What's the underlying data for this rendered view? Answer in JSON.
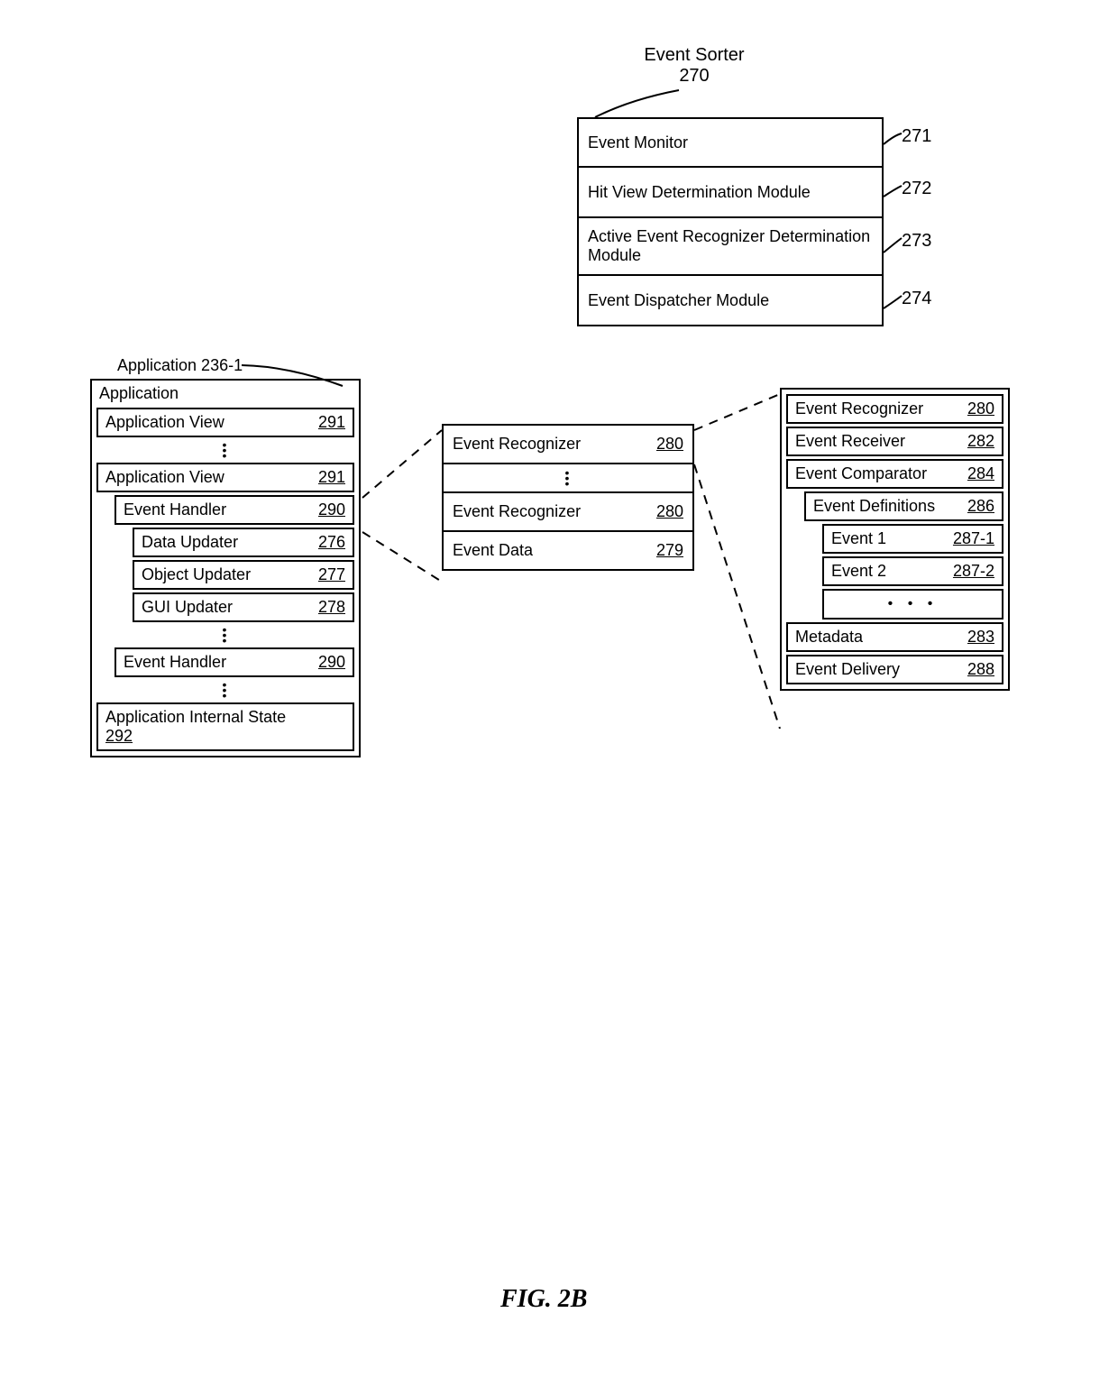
{
  "colors": {
    "stroke": "#000000",
    "background": "#ffffff",
    "text": "#000000"
  },
  "typography": {
    "font_family": "Arial, Helvetica, sans-serif",
    "label_fontsize": 18,
    "callout_fontsize": 20,
    "caption_fontsize": 28
  },
  "figure_caption": "FIG. 2B",
  "event_sorter": {
    "title": "Event Sorter",
    "title_ref": "270",
    "rows": [
      {
        "label": "Event Monitor",
        "callout": "271"
      },
      {
        "label": "Hit View Determination Module",
        "callout": "272"
      },
      {
        "label": "Active Event Recognizer Determination Module",
        "callout": "273"
      },
      {
        "label": "Event Dispatcher Module",
        "callout": "274"
      }
    ]
  },
  "application": {
    "outer_label": "Application 236-1",
    "header": "Application",
    "rows": [
      {
        "kind": "item",
        "label": "Application View",
        "ref": "291",
        "indent": 0
      },
      {
        "kind": "vdots"
      },
      {
        "kind": "item",
        "label": "Application View",
        "ref": "291",
        "indent": 0
      },
      {
        "kind": "item",
        "label": "Event Handler",
        "ref": "290",
        "indent": 1
      },
      {
        "kind": "item",
        "label": "Data Updater",
        "ref": "276",
        "indent": 2
      },
      {
        "kind": "item",
        "label": "Object Updater",
        "ref": "277",
        "indent": 2
      },
      {
        "kind": "item",
        "label": "GUI Updater",
        "ref": "278",
        "indent": 2
      },
      {
        "kind": "vdots"
      },
      {
        "kind": "item",
        "label": "Event Handler",
        "ref": "290",
        "indent": 1
      },
      {
        "kind": "vdots"
      },
      {
        "kind": "item",
        "label": "Application Internal State",
        "ref": "292",
        "indent": 0,
        "stacked": true
      }
    ]
  },
  "appview_detail": {
    "rows": [
      {
        "kind": "item",
        "label": "Event Recognizer",
        "ref": "280"
      },
      {
        "kind": "vdots"
      },
      {
        "kind": "item",
        "label": "Event Recognizer",
        "ref": "280"
      },
      {
        "kind": "item",
        "label": "Event Data",
        "ref": "279"
      }
    ]
  },
  "event_recognizer": {
    "title": "Event Recognizer",
    "title_ref": "280",
    "rows": [
      {
        "kind": "item",
        "label": "Event Receiver",
        "ref": "282",
        "indent": 0
      },
      {
        "kind": "item",
        "label": "Event Comparator",
        "ref": "284",
        "indent": 0
      },
      {
        "kind": "item",
        "label": "Event Definitions",
        "ref": "286",
        "indent": 1
      },
      {
        "kind": "item",
        "label": "Event 1",
        "ref": "287-1",
        "indent": 2
      },
      {
        "kind": "item",
        "label": "Event 2",
        "ref": "287-2",
        "indent": 2
      },
      {
        "kind": "hdots",
        "indent": 2
      },
      {
        "kind": "item",
        "label": "Metadata",
        "ref": "283",
        "indent": 0
      },
      {
        "kind": "item",
        "label": "Event Delivery",
        "ref": "288",
        "indent": 0
      }
    ]
  }
}
